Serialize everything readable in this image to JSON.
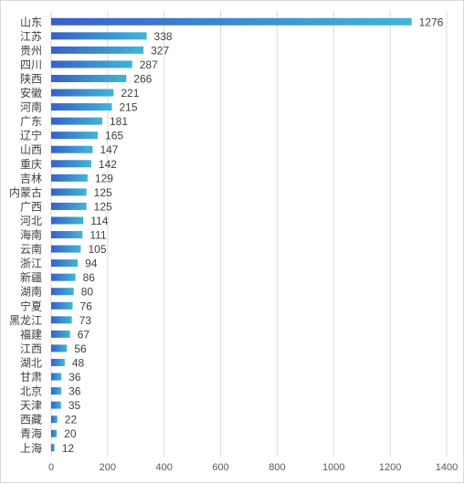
{
  "chart_data": {
    "type": "bar",
    "orientation": "horizontal",
    "categories": [
      "山东",
      "江苏",
      "贵州",
      "四川",
      "陕西",
      "安徽",
      "河南",
      "广东",
      "辽宁",
      "山西",
      "重庆",
      "吉林",
      "内蒙古",
      "广西",
      "河北",
      "海南",
      "云南",
      "浙江",
      "新疆",
      "湖南",
      "宁夏",
      "黑龙江",
      "福建",
      "江西",
      "湖北",
      "甘肃",
      "北京",
      "天津",
      "西藏",
      "青海",
      "上海"
    ],
    "values": [
      1276,
      338,
      327,
      287,
      266,
      221,
      215,
      181,
      165,
      147,
      142,
      129,
      125,
      125,
      114,
      111,
      105,
      94,
      86,
      80,
      76,
      73,
      67,
      56,
      48,
      36,
      36,
      35,
      22,
      20,
      12
    ],
    "xlim": [
      0,
      1400
    ],
    "xticks": [
      "0",
      "200",
      "400",
      "600",
      "800",
      "1000",
      "1200",
      "1400"
    ],
    "grid": true,
    "legend": "none",
    "bar_gradient": [
      "#3a5fc8",
      "#3fb6d6"
    ]
  }
}
